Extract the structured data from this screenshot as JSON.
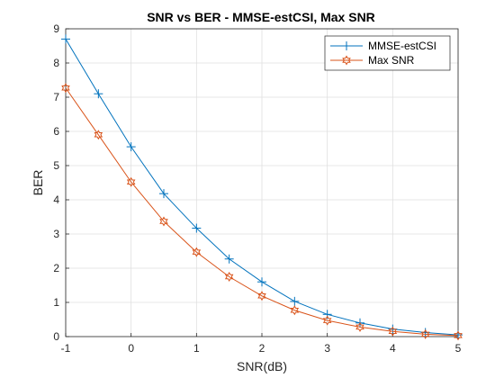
{
  "chart_data": {
    "type": "line",
    "title": "SNR vs BER - MMSE-estCSI, Max SNR",
    "xlabel": "SNR(dB)",
    "ylabel": "BER",
    "xlim": [
      -1,
      5
    ],
    "ylim": [
      0,
      9
    ],
    "xticks": [
      "-1",
      "0",
      "1",
      "2",
      "3",
      "4",
      "5"
    ],
    "yticks": [
      "0",
      "1",
      "2",
      "3",
      "4",
      "5",
      "6",
      "7",
      "8",
      "9"
    ],
    "grid": true,
    "legend_position": "top-right",
    "x": [
      -1,
      -0.5,
      0,
      0.5,
      1,
      1.5,
      2,
      2.5,
      3,
      3.5,
      4,
      4.5,
      5
    ],
    "series": [
      {
        "name": "MMSE-estCSI",
        "color": "#0072BD",
        "marker": "plus",
        "values": [
          8.7,
          7.1,
          5.55,
          4.18,
          3.17,
          2.27,
          1.6,
          1.03,
          0.65,
          0.4,
          0.22,
          0.12,
          0.05
        ]
      },
      {
        "name": "Max SNR",
        "color": "#D95319",
        "marker": "hexagram",
        "values": [
          7.27,
          5.9,
          4.52,
          3.37,
          2.47,
          1.75,
          1.19,
          0.77,
          0.47,
          0.28,
          0.15,
          0.07,
          0.03
        ]
      }
    ]
  }
}
